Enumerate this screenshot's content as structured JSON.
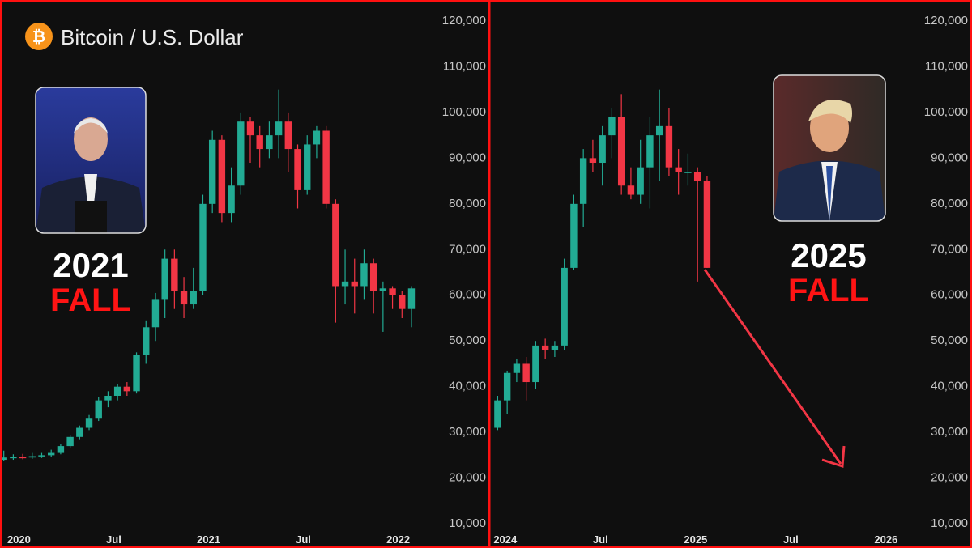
{
  "chart_data": [
    {
      "type": "candlestick",
      "title": "Bitcoin / U.S. Dollar",
      "logo_symbol": "₿",
      "annotations": [
        "2021",
        "FALL"
      ],
      "up_color": "#22ab94",
      "down_color": "#f23645",
      "grid": false,
      "xlim": [
        2019.9,
        2022.1
      ],
      "xticks": [
        2020,
        {
          "value": 2020.5,
          "label": "Jul"
        },
        2021,
        {
          "value": 2021.5,
          "label": "Jul"
        },
        2022
      ],
      "ylim": [
        8600,
        124600
      ],
      "yticks": [
        {
          "value": 10000,
          "label": "10,000"
        },
        {
          "value": 20000,
          "label": "20,000"
        },
        {
          "value": 30000,
          "label": "30,000"
        },
        {
          "value": 40000,
          "label": "40,000"
        },
        {
          "value": 50000,
          "label": "50,000"
        },
        {
          "value": 60000,
          "label": "60,000"
        },
        {
          "value": 70000,
          "label": "70,000"
        },
        {
          "value": 80000,
          "label": "80,000"
        },
        {
          "value": 90000,
          "label": "90,000"
        },
        {
          "value": 100000,
          "label": "100,000"
        },
        {
          "value": 110000,
          "label": "110,000"
        },
        {
          "value": 120000,
          "label": "120,000"
        }
      ],
      "candles": [
        [
          2019.92,
          24000,
          26000,
          23800,
          24500
        ],
        [
          2019.97,
          24500,
          25200,
          24000,
          24600
        ],
        [
          2020.02,
          24600,
          25300,
          24100,
          24500
        ],
        [
          2020.07,
          24500,
          25500,
          24200,
          24800
        ],
        [
          2020.12,
          24800,
          25500,
          24400,
          25000
        ],
        [
          2020.17,
          25000,
          26200,
          24700,
          25500
        ],
        [
          2020.22,
          25500,
          27500,
          25200,
          27000
        ],
        [
          2020.27,
          27000,
          29500,
          26600,
          29000
        ],
        [
          2020.32,
          29000,
          31500,
          28500,
          31000
        ],
        [
          2020.37,
          31000,
          33800,
          30500,
          33000
        ],
        [
          2020.42,
          33000,
          37800,
          32500,
          37000
        ],
        [
          2020.47,
          37000,
          39000,
          35500,
          38000
        ],
        [
          2020.52,
          38000,
          40500,
          37000,
          40000
        ],
        [
          2020.57,
          40000,
          41000,
          38000,
          39000
        ],
        [
          2020.62,
          39000,
          47500,
          38500,
          47000
        ],
        [
          2020.67,
          47000,
          54500,
          45000,
          53000
        ],
        [
          2020.72,
          53000,
          60500,
          50000,
          59000
        ],
        [
          2020.77,
          59000,
          70000,
          55000,
          68000
        ],
        [
          2020.82,
          68000,
          70000,
          57000,
          61000
        ],
        [
          2020.87,
          61000,
          64000,
          55000,
          58000
        ],
        [
          2020.92,
          58000,
          66000,
          57000,
          61000
        ],
        [
          2020.97,
          61000,
          82000,
          60000,
          80000
        ],
        [
          2021.02,
          80000,
          96000,
          78000,
          94000
        ],
        [
          2021.07,
          94000,
          95000,
          76000,
          78000
        ],
        [
          2021.12,
          78000,
          88000,
          76000,
          84000
        ],
        [
          2021.17,
          84000,
          100000,
          82000,
          98000
        ],
        [
          2021.22,
          98000,
          99000,
          89000,
          95000
        ],
        [
          2021.27,
          95000,
          97000,
          88000,
          92000
        ],
        [
          2021.32,
          92000,
          98000,
          90000,
          95000
        ],
        [
          2021.37,
          95000,
          105000,
          90000,
          98000
        ],
        [
          2021.42,
          98000,
          100000,
          87000,
          92000
        ],
        [
          2021.47,
          92000,
          93000,
          79000,
          83000
        ],
        [
          2021.52,
          83000,
          95000,
          82000,
          93000
        ],
        [
          2021.57,
          93000,
          97000,
          90000,
          96000
        ],
        [
          2021.62,
          96000,
          97000,
          79000,
          80000
        ],
        [
          2021.67,
          80000,
          81000,
          54000,
          62000
        ],
        [
          2021.72,
          62000,
          70000,
          58000,
          63000
        ],
        [
          2021.77,
          63000,
          68000,
          56000,
          62000
        ],
        [
          2021.82,
          62000,
          70000,
          59000,
          67000
        ],
        [
          2021.87,
          67000,
          68000,
          56000,
          61000
        ],
        [
          2021.92,
          61000,
          63000,
          52000,
          61500
        ],
        [
          2021.97,
          61500,
          62000,
          57000,
          60000
        ],
        [
          2022.02,
          60000,
          61000,
          55000,
          57000
        ],
        [
          2022.07,
          57000,
          62000,
          53000,
          61500
        ]
      ]
    },
    {
      "type": "candlestick",
      "annotations": [
        "2025",
        "FALL"
      ],
      "up_color": "#22ab94",
      "down_color": "#f23645",
      "grid": false,
      "xlim": [
        2023.92,
        2026.09
      ],
      "xticks": [
        2024,
        {
          "value": 2024.5,
          "label": "Jul"
        },
        2025,
        {
          "value": 2025.5,
          "label": "Jul"
        },
        2026
      ],
      "ylim": [
        8600,
        124600
      ],
      "yticks": [
        {
          "value": 10000,
          "label": "10,000"
        },
        {
          "value": 20000,
          "label": "20,000"
        },
        {
          "value": 30000,
          "label": "30,000"
        },
        {
          "value": 40000,
          "label": "40,000"
        },
        {
          "value": 50000,
          "label": "50,000"
        },
        {
          "value": 60000,
          "label": "60,000"
        },
        {
          "value": 70000,
          "label": "70,000"
        },
        {
          "value": 80000,
          "label": "80,000"
        },
        {
          "value": 90000,
          "label": "90,000"
        },
        {
          "value": 100000,
          "label": "100,000"
        },
        {
          "value": 110000,
          "label": "110,000"
        },
        {
          "value": 120000,
          "label": "120,000"
        }
      ],
      "candles": [
        [
          2023.96,
          31000,
          38000,
          30500,
          37000
        ],
        [
          2024.01,
          37000,
          43500,
          34000,
          43000
        ],
        [
          2024.06,
          43000,
          46000,
          41000,
          45000
        ],
        [
          2024.11,
          45000,
          46500,
          37000,
          41000
        ],
        [
          2024.16,
          41000,
          50000,
          39500,
          49000
        ],
        [
          2024.21,
          49000,
          50500,
          46000,
          48000
        ],
        [
          2024.26,
          48000,
          50000,
          46500,
          49000
        ],
        [
          2024.31,
          49000,
          68000,
          48000,
          66000
        ],
        [
          2024.36,
          66000,
          82000,
          65500,
          80000
        ],
        [
          2024.41,
          80000,
          92000,
          75000,
          90000
        ],
        [
          2024.46,
          90000,
          94000,
          87000,
          89000
        ],
        [
          2024.51,
          89000,
          97000,
          84000,
          95000
        ],
        [
          2024.56,
          95000,
          101000,
          90000,
          99000
        ],
        [
          2024.61,
          99000,
          104000,
          82000,
          84000
        ],
        [
          2024.66,
          84000,
          88000,
          81000,
          82000
        ],
        [
          2024.71,
          82000,
          94000,
          80000,
          88000
        ],
        [
          2024.76,
          88000,
          99000,
          79000,
          95000
        ],
        [
          2024.81,
          95000,
          105000,
          85000,
          97000
        ],
        [
          2024.86,
          97000,
          101000,
          86000,
          88000
        ],
        [
          2024.91,
          88000,
          92000,
          82000,
          87000
        ],
        [
          2024.96,
          87000,
          91000,
          84000,
          87000
        ],
        [
          2025.01,
          87000,
          88000,
          63000,
          85000
        ],
        [
          2025.06,
          85000,
          86000,
          66000,
          66000
        ]
      ]
    }
  ]
}
